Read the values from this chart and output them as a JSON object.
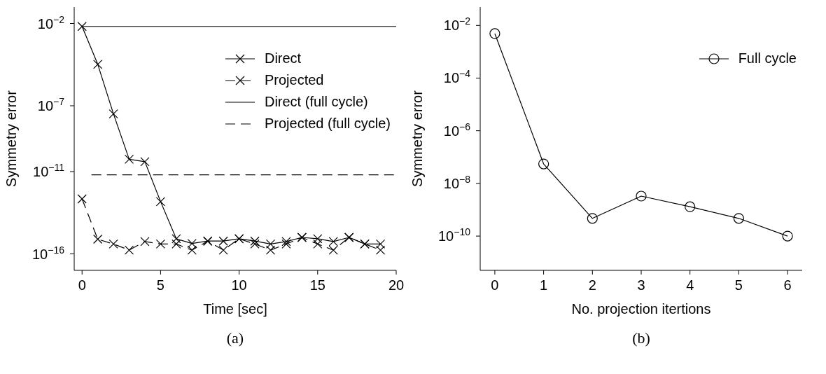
{
  "chart_data": [
    {
      "type": "line",
      "xlabel": "Time [sec]",
      "ylabel": "Symmetry error",
      "log": "y",
      "xlim": [
        -0.5,
        20
      ],
      "xticks": [
        0,
        5,
        10,
        15,
        20
      ],
      "ylim": [
        1e-17,
        0.1
      ],
      "yticks": [
        {
          "value": 0.01,
          "label": "10$^{−2}$"
        },
        {
          "value": 1e-07,
          "label": "10$^{−7}$"
        },
        {
          "value": 1e-11,
          "label": "10$^{−11}$"
        },
        {
          "value": 1e-16,
          "label": "10$^{−16}$"
        }
      ],
      "legend": "top right",
      "marker": "cross",
      "annotations": [
        "(a)"
      ],
      "x": [
        0,
        1,
        2,
        3,
        4,
        5,
        6,
        7,
        8,
        9,
        10,
        11,
        12,
        13,
        14,
        15,
        16,
        17,
        18,
        19
      ],
      "series": [
        {
          "name": "Direct",
          "color": "#000000",
          "line_style": "solid",
          "values": [
            0.0066,
            3.3e-05,
            3.2e-08,
            5.6e-11,
            4e-11,
            1.5e-13,
            8.3e-16,
            4.3e-16,
            6e-16,
            6e-16,
            8.3e-16,
            6e-16,
            4e-16,
            5.6e-16,
            1e-15,
            8.3e-16,
            5.6e-16,
            1e-15,
            4e-16,
            4e-16
          ]
        },
        {
          "name": "Projected",
          "color": "#000000",
          "line_style": "dashed",
          "values": [
            2.2e-13,
            7.8e-16,
            4e-16,
            1.7e-16,
            5.6e-16,
            4e-16,
            4e-16,
            1.7e-16,
            6e-16,
            1.7e-16,
            8.3e-16,
            4e-16,
            1.7e-16,
            4e-16,
            1e-15,
            4e-16,
            1.7e-16,
            1e-15,
            4e-16,
            1.7e-16
          ]
        },
        {
          "name": "Direct (full cycle)",
          "color": "#000000",
          "line_style": "solid",
          "marker": "none",
          "x": [
            0,
            20
          ],
          "values": [
            0.0066,
            0.0066
          ]
        },
        {
          "name": "Projected (full cycle)",
          "color": "#000000",
          "line_style": "dashed",
          "marker": "none",
          "x": [
            0.6,
            20
          ],
          "values": [
            6.3e-12,
            6.3e-12
          ]
        }
      ]
    },
    {
      "type": "line",
      "xlabel": "No. projection itertions",
      "ylabel": "Symmetry error",
      "log": "y",
      "xlim": [
        -0.3,
        6.3
      ],
      "xticks": [
        0,
        1,
        2,
        3,
        4,
        5,
        6
      ],
      "ylim": [
        5e-12,
        0.05
      ],
      "yticks": [
        {
          "value": 0.01,
          "label": "10$^{−2}$"
        },
        {
          "value": 0.0001,
          "label": "10$^{−4}$"
        },
        {
          "value": 1e-06,
          "label": "10$^{−6}$"
        },
        {
          "value": 1e-08,
          "label": "10$^{−8}$"
        },
        {
          "value": 1e-10,
          "label": "10$^{−10}$"
        }
      ],
      "legend": "top right",
      "marker": "circle",
      "line_style": "solid",
      "annotations": [
        "(b)"
      ],
      "x": [
        0,
        1,
        2,
        3,
        4,
        5,
        6
      ],
      "series": [
        {
          "name": "Full cycle",
          "color": "#000000",
          "values": [
            0.0049,
            5.5e-08,
            4.7e-10,
            3.3e-09,
            1.3e-09,
            4.7e-10,
            1e-10
          ]
        }
      ]
    }
  ]
}
